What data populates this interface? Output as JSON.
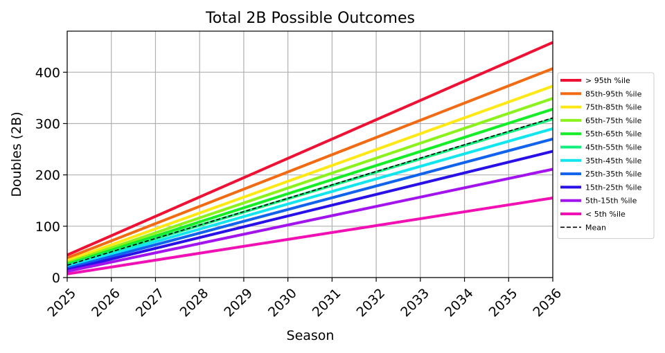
{
  "chart_data": {
    "type": "line",
    "title": "Total 2B Possible Outcomes",
    "xlabel": "Season",
    "ylabel": "Doubles (2B)",
    "xlim": [
      2025,
      2036
    ],
    "ylim": [
      0,
      480
    ],
    "x_ticks": [
      "2025",
      "2026",
      "2027",
      "2028",
      "2029",
      "2030",
      "2031",
      "2032",
      "2033",
      "2034",
      "2035",
      "2036"
    ],
    "y_ticks": [
      0,
      100,
      200,
      300,
      400
    ],
    "grid": true,
    "legend_position": "right",
    "series": [
      {
        "name": "> 95th %ile",
        "color": "#ee1133",
        "x": [
          2025,
          2036
        ],
        "y": [
          44,
          458
        ],
        "style": "solid"
      },
      {
        "name": "85th-95th %ile",
        "color": "#f26a12",
        "x": [
          2025,
          2036
        ],
        "y": [
          38,
          407
        ],
        "style": "solid"
      },
      {
        "name": "75th-85th %ile",
        "color": "#ffe814",
        "x": [
          2025,
          2036
        ],
        "y": [
          33,
          373
        ],
        "style": "solid"
      },
      {
        "name": "65th-75th %ile",
        "color": "#8cf21c",
        "x": [
          2025,
          2036
        ],
        "y": [
          29,
          349
        ],
        "style": "solid"
      },
      {
        "name": "55th-65th %ile",
        "color": "#15ee27",
        "x": [
          2025,
          2036
        ],
        "y": [
          26,
          328
        ],
        "style": "solid"
      },
      {
        "name": "45th-55th %ile",
        "color": "#11f07c",
        "x": [
          2025,
          2036
        ],
        "y": [
          24,
          309
        ],
        "style": "solid"
      },
      {
        "name": "35th-45th %ile",
        "color": "#11e6ee",
        "x": [
          2025,
          2036
        ],
        "y": [
          21,
          290
        ],
        "style": "solid"
      },
      {
        "name": "25th-35th %ile",
        "color": "#1163ee",
        "x": [
          2025,
          2036
        ],
        "y": [
          18,
          270
        ],
        "style": "solid"
      },
      {
        "name": "15th-25th %ile",
        "color": "#2a10e8",
        "x": [
          2025,
          2036
        ],
        "y": [
          15,
          246
        ],
        "style": "solid"
      },
      {
        "name": "5th-15th %ile",
        "color": "#a213ee",
        "x": [
          2025,
          2036
        ],
        "y": [
          12,
          211
        ],
        "style": "solid"
      },
      {
        "name": "< 5th %ile",
        "color": "#f010b4",
        "x": [
          2025,
          2036
        ],
        "y": [
          7,
          155
        ],
        "style": "solid"
      },
      {
        "name": "Mean",
        "color": "#000000",
        "x": [
          2025,
          2036
        ],
        "y": [
          24,
          311
        ],
        "style": "dashed"
      }
    ]
  }
}
